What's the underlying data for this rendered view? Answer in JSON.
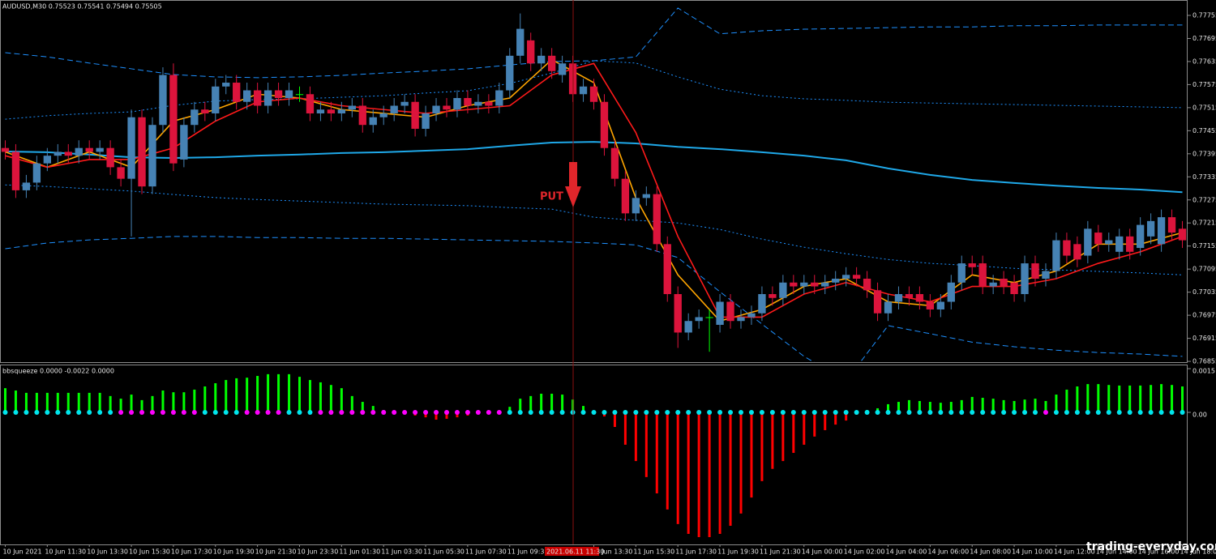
{
  "chart_data": [
    {
      "type": "candlestick",
      "title": "AUDUSD,M30 0.75523 0.75541 0.75494 0.75505",
      "categories": [
        "10 Jun 2021",
        null,
        null,
        null,
        "10 Jun 11:30",
        null,
        null,
        null,
        "10 Jun 13:30",
        null,
        null,
        null,
        "10 Jun 15:30",
        null,
        null,
        null,
        "10 Jun 17:30",
        null,
        null,
        null,
        "10 Jun 19:30",
        null,
        null,
        null,
        "10 Jun 21:30",
        null,
        null,
        null,
        "10 Jun 23:30",
        null,
        null,
        null,
        "11 Jun 01:30",
        null,
        null,
        null,
        "11 Jun 03:30",
        null,
        null,
        null,
        "11 Jun 05:30",
        null,
        null,
        null,
        "11 Jun 07:30",
        null,
        null,
        null,
        "11 Jun 09:30",
        null,
        null,
        null,
        null,
        null,
        null,
        null,
        "11 Jun 13:30",
        null,
        null,
        null,
        "11 Jun 15:30",
        null,
        null,
        null,
        "11 Jun 17:30",
        null,
        null,
        null,
        "11 Jun 19:30",
        null,
        null,
        null,
        "11 Jun 21:30",
        null,
        null,
        null,
        "14 Jun 00:00",
        null,
        null,
        null,
        "14 Jun 02:00",
        null,
        null,
        null,
        "14 Jun 04:00",
        null,
        null,
        null,
        "14 Jun 06:00",
        null,
        null,
        null,
        "14 Jun 08:00",
        null,
        null,
        null,
        "14 Jun 10:00",
        null,
        null,
        null,
        "14 Jun 12:00",
        null,
        null,
        null,
        "14 Jun 14:00",
        null,
        null,
        null,
        "14 Jun 16:00",
        null,
        null,
        null,
        "14 Jun 18:00"
      ],
      "open": [
        0.7741,
        0.774,
        0.773,
        0.7732,
        0.7737,
        0.7739,
        0.774,
        0.7739,
        0.7741,
        0.774,
        0.7741,
        0.7736,
        0.7733,
        0.7749,
        0.7731,
        0.7747,
        0.776,
        0.7738,
        0.7747,
        0.7751,
        0.775,
        0.7757,
        0.7758,
        0.7753,
        0.7756,
        0.7752,
        0.7756,
        0.7754,
        0.7755,
        0.7755,
        0.775,
        0.7751,
        0.775,
        0.7751,
        0.7752,
        0.7747,
        0.7749,
        0.775,
        0.7752,
        0.7753,
        0.7746,
        0.775,
        0.7752,
        0.7751,
        0.7754,
        0.7752,
        0.7753,
        0.7752,
        0.7756,
        0.7765,
        0.7769,
        0.7763,
        0.7765,
        0.776,
        0.7763,
        0.7755,
        0.7757,
        0.7753,
        0.7741,
        0.7733,
        0.7724,
        0.7728,
        0.7729,
        0.7716,
        0.7703,
        0.7693,
        0.7696,
        0.7697,
        0.7695,
        0.7701,
        0.7696,
        0.7697,
        0.7698,
        0.7703,
        0.7702,
        0.7706,
        0.7705,
        0.7706,
        0.7705,
        0.7706,
        0.7707,
        0.7708,
        0.7707,
        0.7704,
        0.7698,
        0.7701,
        0.7703,
        0.7703,
        0.7701,
        0.7699,
        0.7701,
        0.7706,
        0.7711,
        0.7711,
        0.7705,
        0.7707,
        0.7706,
        0.7703,
        0.7711,
        0.7707,
        0.7709,
        0.7717,
        0.7716,
        0.7713,
        0.7719,
        0.7716,
        0.7714,
        0.7718,
        0.7715,
        0.7718,
        0.7716,
        0.7723,
        0.772
      ],
      "high": [
        0.7743,
        0.7742,
        0.7734,
        0.7739,
        0.7741,
        0.7742,
        0.7742,
        0.7743,
        0.7743,
        0.7743,
        0.7743,
        0.7738,
        0.7751,
        0.7751,
        0.7749,
        0.7762,
        0.7763,
        0.7749,
        0.7753,
        0.7753,
        0.7759,
        0.776,
        0.776,
        0.7758,
        0.7758,
        0.7758,
        0.7758,
        0.7758,
        0.7757,
        0.7757,
        0.7753,
        0.7753,
        0.7753,
        0.7754,
        0.7754,
        0.7751,
        0.7752,
        0.7754,
        0.7755,
        0.7755,
        0.7752,
        0.7754,
        0.7754,
        0.7756,
        0.7756,
        0.7755,
        0.7755,
        0.7758,
        0.7767,
        0.7776,
        0.7771,
        0.7767,
        0.7767,
        0.7765,
        0.7765,
        0.7759,
        0.7759,
        0.7755,
        0.7743,
        0.7735,
        0.773,
        0.7731,
        0.7731,
        0.7718,
        0.7705,
        0.7698,
        0.7699,
        0.7699,
        0.7703,
        0.7703,
        0.7699,
        0.77,
        0.7705,
        0.7705,
        0.7708,
        0.7708,
        0.7708,
        0.7708,
        0.7708,
        0.7709,
        0.771,
        0.771,
        0.7709,
        0.7706,
        0.7703,
        0.7705,
        0.7705,
        0.7705,
        0.7703,
        0.7703,
        0.7708,
        0.7713,
        0.7713,
        0.7713,
        0.7708,
        0.7709,
        0.7708,
        0.7713,
        0.7713,
        0.7711,
        0.7719,
        0.7719,
        0.7718,
        0.7722,
        0.7721,
        0.7719,
        0.772,
        0.772,
        0.7723,
        0.7724,
        0.7725,
        0.7725,
        0.7722
      ],
      "low": [
        0.7738,
        0.7728,
        0.7728,
        0.773,
        0.7735,
        0.7737,
        0.7737,
        0.7737,
        0.7738,
        0.7738,
        0.7734,
        0.7731,
        0.7718,
        0.7729,
        0.7729,
        0.7745,
        0.7735,
        0.7736,
        0.7745,
        0.7748,
        0.7748,
        0.7755,
        0.7751,
        0.7751,
        0.775,
        0.775,
        0.7752,
        0.7752,
        0.7753,
        0.7748,
        0.7748,
        0.7748,
        0.7748,
        0.7749,
        0.7745,
        0.7745,
        0.7747,
        0.7748,
        0.775,
        0.7744,
        0.7744,
        0.7748,
        0.7749,
        0.7749,
        0.775,
        0.775,
        0.775,
        0.775,
        0.7754,
        0.7763,
        0.7761,
        0.7761,
        0.7759,
        0.7758,
        0.7753,
        0.7753,
        0.7751,
        0.7739,
        0.7731,
        0.7722,
        0.7722,
        0.7726,
        0.7714,
        0.7701,
        0.7689,
        0.7691,
        0.7694,
        0.7688,
        0.7693,
        0.7694,
        0.7694,
        0.7695,
        0.7696,
        0.77,
        0.77,
        0.7703,
        0.7703,
        0.7703,
        0.7703,
        0.7704,
        0.7705,
        0.7705,
        0.7702,
        0.7696,
        0.7696,
        0.7699,
        0.77,
        0.7699,
        0.7697,
        0.7697,
        0.7699,
        0.7704,
        0.7708,
        0.7703,
        0.7703,
        0.7703,
        0.7701,
        0.7701,
        0.7705,
        0.7705,
        0.7707,
        0.7711,
        0.771,
        0.7711,
        0.7714,
        0.7714,
        0.7712,
        0.7712,
        0.7713,
        0.7716,
        0.7714,
        0.7717,
        0.7715
      ],
      "close": [
        0.774,
        0.773,
        0.7732,
        0.7737,
        0.7739,
        0.774,
        0.7739,
        0.7741,
        0.774,
        0.7741,
        0.7736,
        0.7733,
        0.7749,
        0.7731,
        0.7747,
        0.776,
        0.7737,
        0.7747,
        0.7751,
        0.775,
        0.7757,
        0.7758,
        0.7753,
        0.7756,
        0.7752,
        0.7756,
        0.7754,
        0.7756,
        0.7755,
        0.775,
        0.7751,
        0.775,
        0.7751,
        0.7752,
        0.7747,
        0.7749,
        0.775,
        0.7752,
        0.7753,
        0.7746,
        0.775,
        0.7752,
        0.7751,
        0.7754,
        0.7752,
        0.7753,
        0.7752,
        0.7756,
        0.7765,
        0.7772,
        0.7763,
        0.7765,
        0.7761,
        0.7763,
        0.7755,
        0.7757,
        0.7753,
        0.7741,
        0.7733,
        0.7724,
        0.7728,
        0.7729,
        0.7716,
        0.7703,
        0.7693,
        0.7696,
        0.7697,
        0.7697,
        0.7701,
        0.7696,
        0.7697,
        0.7698,
        0.7703,
        0.7702,
        0.7706,
        0.7705,
        0.7706,
        0.7705,
        0.7706,
        0.7707,
        0.7708,
        0.7707,
        0.7704,
        0.7698,
        0.7701,
        0.7703,
        0.7702,
        0.7701,
        0.7699,
        0.7701,
        0.7706,
        0.7711,
        0.771,
        0.7705,
        0.7706,
        0.7705,
        0.7703,
        0.7711,
        0.7707,
        0.7709,
        0.7717,
        0.7713,
        0.7712,
        0.772,
        0.7716,
        0.7717,
        0.7718,
        0.7714,
        0.7721,
        0.7722,
        0.7723,
        0.7719,
        0.7717
      ],
      "up_color": "#4682b4",
      "down_color": "#dc143c",
      "doji_color": "#00ff00",
      "ylim": [
        0.76853,
        0.77795
      ],
      "yticks": [
        0.77755,
        0.77695,
        0.77635,
        0.77575,
        0.77515,
        0.77455,
        0.77395,
        0.77335,
        0.77275,
        0.77215,
        0.77155,
        0.77095,
        0.77035,
        0.76975,
        0.76915,
        0.76855
      ],
      "overlay_x": [
        0,
        4,
        8,
        12,
        16,
        20,
        24,
        28,
        32,
        36,
        40,
        44,
        48,
        52,
        56,
        60,
        64,
        68,
        72,
        76,
        80,
        84,
        88,
        92,
        96,
        100,
        104,
        108,
        112
      ],
      "overlays": [
        {
          "color": "#1fa8e8",
          "style": "solid",
          "values": [
            0.77401,
            0.77399,
            0.77393,
            0.77386,
            0.77384,
            0.77386,
            0.7739,
            0.77393,
            0.77397,
            0.77399,
            0.77403,
            0.77407,
            0.77416,
            0.77424,
            0.77426,
            0.77422,
            0.77413,
            0.77407,
            0.77399,
            0.7739,
            0.77378,
            0.77357,
            0.7734,
            0.77327,
            0.77319,
            0.77312,
            0.77306,
            0.77302,
            0.77295
          ]
        },
        {
          "color": "#1e90ff",
          "style": "dotted",
          "values": [
            0.77485,
            0.77494,
            0.775,
            0.77504,
            0.77521,
            0.77532,
            0.77536,
            0.77538,
            0.77542,
            0.77546,
            0.77553,
            0.77559,
            0.77578,
            0.77605,
            0.77637,
            0.77631,
            0.77595,
            0.77563,
            0.77546,
            0.77538,
            0.77534,
            0.77529,
            0.77527,
            0.77525,
            0.77523,
            0.77521,
            0.77519,
            0.77517,
            0.77515
          ]
        },
        {
          "color": "#1e90ff",
          "style": "dotted",
          "values": [
            0.77314,
            0.7731,
            0.77304,
            0.77298,
            0.77289,
            0.77281,
            0.77276,
            0.77272,
            0.77268,
            0.77264,
            0.77262,
            0.7726,
            0.77255,
            0.77251,
            0.7723,
            0.77222,
            0.77215,
            0.77198,
            0.77173,
            0.77152,
            0.77135,
            0.7712,
            0.7711,
            0.77104,
            0.77097,
            0.77093,
            0.77089,
            0.77085,
            0.7708
          ]
        },
        {
          "color": "#1e90ff",
          "style": "dashed",
          "values": [
            0.77658,
            0.77647,
            0.77631,
            0.77616,
            0.77601,
            0.77595,
            0.77593,
            0.77595,
            0.77599,
            0.77605,
            0.7761,
            0.77616,
            0.77626,
            0.77635,
            0.77637,
            0.77647,
            0.77774,
            0.77707,
            0.77715,
            0.77719,
            0.77721,
            0.77723,
            0.77725,
            0.77725,
            0.77728,
            0.77728,
            0.7773,
            0.7773,
            0.7773
          ]
        },
        {
          "color": "#1e90ff",
          "style": "dashed",
          "values": [
            0.77148,
            0.77163,
            0.77171,
            0.77175,
            0.7718,
            0.7718,
            0.77177,
            0.77177,
            0.77175,
            0.77175,
            0.77173,
            0.77171,
            0.77169,
            0.77167,
            0.77163,
            0.77158,
            0.77125,
            0.77036,
            0.76952,
            0.76868,
            0.76804,
            0.76948,
            0.76927,
            0.76905,
            0.76893,
            0.76884,
            0.76878,
            0.76874,
            0.76868
          ]
        },
        {
          "color": "#ffa500",
          "style": "solid",
          "values": [
            0.774,
            0.7736,
            0.774,
            0.7736,
            0.7748,
            0.7751,
            0.7755,
            0.7754,
            0.7751,
            0.775,
            0.7749,
            0.7752,
            0.7754,
            0.7764,
            0.7758,
            0.7728,
            0.7708,
            0.7696,
            0.7699,
            0.7705,
            0.7707,
            0.7701,
            0.77,
            0.7708,
            0.7706,
            0.7709,
            0.7716,
            0.7716,
            0.7719
          ]
        },
        {
          "color": "#ff1a1a",
          "style": "solid",
          "values": [
            0.7739,
            0.7736,
            0.7738,
            0.7738,
            0.7741,
            0.7748,
            0.7753,
            0.7754,
            0.7752,
            0.7751,
            0.775,
            0.7751,
            0.7752,
            0.776,
            0.7763,
            0.7745,
            0.7718,
            0.7697,
            0.7697,
            0.7703,
            0.7706,
            0.7703,
            0.7701,
            0.7705,
            0.7705,
            0.7707,
            0.7711,
            0.7714,
            0.7718
          ]
        }
      ],
      "annotation": "PUT",
      "cursor_label": "2021.06.11 11:30"
    },
    {
      "type": "bar",
      "title": "bbsqueeze 0.0000 -0.0022 0.0000",
      "values": [
        0.00083,
        0.00075,
        0.00067,
        0.00067,
        0.00067,
        0.00067,
        0.00067,
        0.00067,
        0.00067,
        0.00067,
        0.00056,
        0.00047,
        0.00061,
        0.00042,
        0.00056,
        0.00075,
        0.00069,
        0.00069,
        0.00078,
        0.00089,
        0.001,
        0.00111,
        0.00117,
        0.00119,
        0.00125,
        0.00131,
        0.00131,
        0.00131,
        0.00122,
        0.00111,
        0.00103,
        0.00094,
        0.00083,
        0.00056,
        0.00036,
        0.00022,
        8e-05,
        3e-05,
        -6e-05,
        -0.00011,
        -0.00017,
        -0.00025,
        -0.00022,
        -0.00017,
        -0.00011,
        -6e-05,
        -3e-05,
        3e-05,
        0.00019,
        0.00047,
        0.00056,
        0.00064,
        0.00064,
        0.00061,
        0.00044,
        0.00022,
        6e-05,
        -0.00014,
        -0.0005,
        -0.00111,
        -0.00167,
        -0.00222,
        -0.00278,
        -0.00333,
        -0.00383,
        -0.00417,
        -0.00428,
        -0.00428,
        -0.00417,
        -0.00389,
        -0.00347,
        -0.00292,
        -0.00236,
        -0.00194,
        -0.00167,
        -0.00139,
        -0.00111,
        -0.00083,
        -0.00061,
        -0.00042,
        -0.00028,
        -8e-05,
        8e-05,
        0.00014,
        0.00028,
        0.00036,
        0.00042,
        0.00039,
        0.00036,
        0.00033,
        0.00036,
        0.00042,
        0.00053,
        0.0005,
        0.00047,
        0.00042,
        0.00039,
        0.00044,
        0.00047,
        0.00039,
        0.00061,
        0.00078,
        0.00089,
        0.00097,
        0.00097,
        0.00094,
        0.00092,
        0.00092,
        0.00092,
        0.00094,
        0.00097,
        0.00094,
        0.00089
      ],
      "positive_color": "#00ff00",
      "negative_color": "#ff0000",
      "dot_color": "#00e5ee",
      "squeeze_color": "#ff00ff",
      "squeeze_on": [
        11,
        12,
        13,
        14,
        15,
        16,
        17,
        18,
        23,
        24,
        25,
        26,
        30,
        31,
        32,
        33,
        34,
        35,
        36,
        37,
        38,
        39,
        40,
        41,
        42,
        43,
        44,
        45,
        46,
        47,
        99
      ],
      "ylim": [
        -0.00453,
        0.00164
      ],
      "yticks": [
        0.0015,
        {
          "value": 0,
          "label": "0.00"
        }
      ]
    }
  ],
  "watermark": "trading-everyday.com"
}
